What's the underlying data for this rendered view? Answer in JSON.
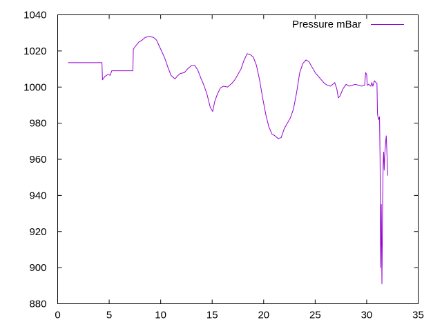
{
  "chart_data": {
    "type": "line",
    "title": "",
    "xlabel": "",
    "ylabel": "",
    "xlim": [
      0,
      35
    ],
    "ylim": [
      880,
      1040
    ],
    "xticks": [
      0,
      5,
      10,
      15,
      20,
      25,
      30,
      35
    ],
    "yticks": [
      880,
      900,
      920,
      940,
      960,
      980,
      1000,
      1020,
      1040
    ],
    "grid": false,
    "legend": {
      "position": "top-right"
    },
    "series": [
      {
        "name": "Pressure mBar",
        "color": "#9400d3",
        "points": [
          [
            1.0,
            1013.5
          ],
          [
            2.0,
            1013.5
          ],
          [
            3.0,
            1013.5
          ],
          [
            4.3,
            1013.5
          ],
          [
            4.35,
            1004.0
          ],
          [
            4.6,
            1006.0
          ],
          [
            4.9,
            1007.0
          ],
          [
            5.1,
            1006.5
          ],
          [
            5.25,
            1009.0
          ],
          [
            6.0,
            1009.0
          ],
          [
            7.0,
            1009.0
          ],
          [
            7.3,
            1009.0
          ],
          [
            7.35,
            1021.0
          ],
          [
            7.6,
            1023.0
          ],
          [
            7.9,
            1025.0
          ],
          [
            8.2,
            1026.0
          ],
          [
            8.5,
            1027.5
          ],
          [
            8.9,
            1028.0
          ],
          [
            9.3,
            1027.5
          ],
          [
            9.6,
            1026.0
          ],
          [
            10.0,
            1021.0
          ],
          [
            10.4,
            1016.0
          ],
          [
            10.7,
            1011.0
          ],
          [
            11.0,
            1006.5
          ],
          [
            11.4,
            1004.5
          ],
          [
            11.6,
            1006.0
          ],
          [
            11.9,
            1007.5
          ],
          [
            12.3,
            1008.0
          ],
          [
            12.6,
            1010.0
          ],
          [
            13.0,
            1012.0
          ],
          [
            13.3,
            1012.0
          ],
          [
            13.6,
            1009.5
          ],
          [
            13.9,
            1005.0
          ],
          [
            14.2,
            1001.0
          ],
          [
            14.5,
            996.0
          ],
          [
            14.8,
            989.0
          ],
          [
            15.05,
            986.5
          ],
          [
            15.25,
            992.0
          ],
          [
            15.5,
            996.0
          ],
          [
            15.8,
            999.5
          ],
          [
            16.1,
            1000.5
          ],
          [
            16.5,
            1000.0
          ],
          [
            16.9,
            1002.0
          ],
          [
            17.2,
            1004.0
          ],
          [
            17.5,
            1007.0
          ],
          [
            17.8,
            1010.0
          ],
          [
            18.1,
            1015.0
          ],
          [
            18.4,
            1018.5
          ],
          [
            18.7,
            1018.0
          ],
          [
            19.0,
            1016.5
          ],
          [
            19.3,
            1012.0
          ],
          [
            19.6,
            1004.0
          ],
          [
            19.9,
            994.0
          ],
          [
            20.2,
            985.0
          ],
          [
            20.5,
            978.0
          ],
          [
            20.8,
            974.0
          ],
          [
            21.1,
            973.0
          ],
          [
            21.4,
            971.5
          ],
          [
            21.7,
            972.0
          ],
          [
            22.0,
            977.0
          ],
          [
            22.3,
            980.0
          ],
          [
            22.6,
            983.0
          ],
          [
            22.9,
            988.0
          ],
          [
            23.2,
            997.0
          ],
          [
            23.5,
            1008.0
          ],
          [
            23.8,
            1013.0
          ],
          [
            24.1,
            1015.0
          ],
          [
            24.4,
            1014.0
          ],
          [
            24.7,
            1011.0
          ],
          [
            25.0,
            1008.0
          ],
          [
            25.3,
            1006.0
          ],
          [
            25.6,
            1004.0
          ],
          [
            25.9,
            1002.0
          ],
          [
            26.2,
            1001.0
          ],
          [
            26.5,
            1000.5
          ],
          [
            26.9,
            1002.5
          ],
          [
            27.1,
            999.0
          ],
          [
            27.25,
            994.0
          ],
          [
            27.4,
            995.0
          ],
          [
            27.7,
            999.0
          ],
          [
            28.0,
            1001.5
          ],
          [
            28.3,
            1000.5
          ],
          [
            28.6,
            1001.0
          ],
          [
            28.9,
            1001.5
          ],
          [
            29.2,
            1001.0
          ],
          [
            29.5,
            1000.5
          ],
          [
            29.8,
            1001.0
          ],
          [
            29.9,
            1008.0
          ],
          [
            30.0,
            1007.0
          ],
          [
            30.05,
            1001.0
          ],
          [
            30.2,
            1001.5
          ],
          [
            30.4,
            1000.5
          ],
          [
            30.5,
            1002.5
          ],
          [
            30.6,
            1000.5
          ],
          [
            30.75,
            1003.5
          ],
          [
            30.9,
            1002.5
          ],
          [
            31.0,
            1002.0
          ],
          [
            31.05,
            985.0
          ],
          [
            31.15,
            982.0
          ],
          [
            31.25,
            983.5
          ],
          [
            31.3,
            960.0
          ],
          [
            31.36,
            900.0
          ],
          [
            31.42,
            935.0
          ],
          [
            31.48,
            891.0
          ],
          [
            31.55,
            935.0
          ],
          [
            31.6,
            958.0
          ],
          [
            31.65,
            964.0
          ],
          [
            31.7,
            954.0
          ],
          [
            31.75,
            962.0
          ],
          [
            31.85,
            970.0
          ],
          [
            31.9,
            973.0
          ],
          [
            31.95,
            966.0
          ],
          [
            32.05,
            951.0
          ]
        ]
      }
    ]
  }
}
